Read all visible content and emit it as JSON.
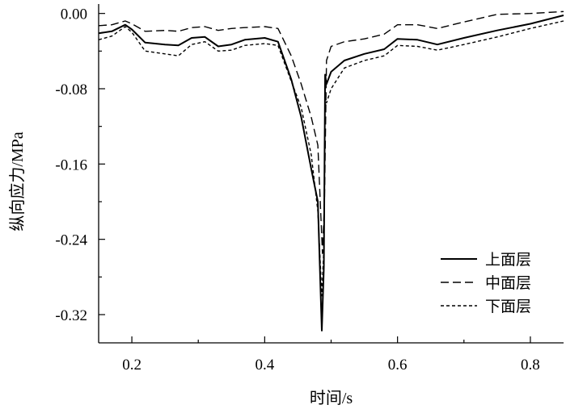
{
  "chart_data": {
    "type": "line",
    "title": "",
    "xlabel": "时间/s",
    "ylabel": "纵向应力/MPa",
    "xlim": [
      0.15,
      0.85
    ],
    "ylim": [
      -0.35,
      0.01
    ],
    "xticks": [
      0.2,
      0.4,
      0.6,
      0.8
    ],
    "xtick_labels": [
      "0.2",
      "0.4",
      "0.6",
      "0.8"
    ],
    "yticks": [
      0.0,
      -0.08,
      -0.16,
      -0.24,
      -0.32
    ],
    "ytick_labels": [
      "0.00",
      "-0.08",
      "-0.16",
      "-0.24",
      "-0.32"
    ],
    "grid": false,
    "legend_position": "bottom-right",
    "series": [
      {
        "name": "上面层",
        "style": "solid",
        "points": [
          [
            0.15,
            -0.021
          ],
          [
            0.17,
            -0.019
          ],
          [
            0.19,
            -0.012
          ],
          [
            0.2,
            -0.017
          ],
          [
            0.22,
            -0.031
          ],
          [
            0.25,
            -0.033
          ],
          [
            0.27,
            -0.034
          ],
          [
            0.29,
            -0.026
          ],
          [
            0.31,
            -0.025
          ],
          [
            0.33,
            -0.035
          ],
          [
            0.35,
            -0.033
          ],
          [
            0.37,
            -0.028
          ],
          [
            0.4,
            -0.026
          ],
          [
            0.42,
            -0.03
          ],
          [
            0.44,
            -0.07
          ],
          [
            0.455,
            -0.11
          ],
          [
            0.47,
            -0.165
          ],
          [
            0.48,
            -0.2
          ],
          [
            0.486,
            -0.337
          ],
          [
            0.489,
            -0.27
          ],
          [
            0.491,
            -0.065
          ],
          [
            0.493,
            -0.075
          ],
          [
            0.5,
            -0.062
          ],
          [
            0.52,
            -0.05
          ],
          [
            0.55,
            -0.043
          ],
          [
            0.58,
            -0.038
          ],
          [
            0.6,
            -0.027
          ],
          [
            0.63,
            -0.028
          ],
          [
            0.66,
            -0.033
          ],
          [
            0.7,
            -0.026
          ],
          [
            0.75,
            -0.018
          ],
          [
            0.8,
            -0.011
          ],
          [
            0.85,
            -0.002
          ]
        ]
      },
      {
        "name": "中面层",
        "style": "dashed",
        "points": [
          [
            0.15,
            -0.013
          ],
          [
            0.17,
            -0.012
          ],
          [
            0.19,
            -0.008
          ],
          [
            0.2,
            -0.011
          ],
          [
            0.22,
            -0.019
          ],
          [
            0.25,
            -0.018
          ],
          [
            0.27,
            -0.019
          ],
          [
            0.29,
            -0.015
          ],
          [
            0.31,
            -0.014
          ],
          [
            0.33,
            -0.018
          ],
          [
            0.35,
            -0.016
          ],
          [
            0.37,
            -0.015
          ],
          [
            0.4,
            -0.014
          ],
          [
            0.42,
            -0.016
          ],
          [
            0.44,
            -0.045
          ],
          [
            0.455,
            -0.075
          ],
          [
            0.47,
            -0.11
          ],
          [
            0.48,
            -0.14
          ],
          [
            0.487,
            -0.255
          ],
          [
            0.49,
            -0.2
          ],
          [
            0.493,
            -0.05
          ],
          [
            0.5,
            -0.035
          ],
          [
            0.52,
            -0.03
          ],
          [
            0.55,
            -0.027
          ],
          [
            0.58,
            -0.022
          ],
          [
            0.6,
            -0.012
          ],
          [
            0.63,
            -0.012
          ],
          [
            0.66,
            -0.016
          ],
          [
            0.7,
            -0.009
          ],
          [
            0.75,
            -0.001
          ],
          [
            0.8,
            0.0
          ],
          [
            0.85,
            0.002
          ]
        ]
      },
      {
        "name": "下面层",
        "style": "short-dashed",
        "points": [
          [
            0.15,
            -0.028
          ],
          [
            0.17,
            -0.024
          ],
          [
            0.19,
            -0.014
          ],
          [
            0.2,
            -0.02
          ],
          [
            0.22,
            -0.04
          ],
          [
            0.25,
            -0.043
          ],
          [
            0.27,
            -0.045
          ],
          [
            0.29,
            -0.033
          ],
          [
            0.31,
            -0.03
          ],
          [
            0.33,
            -0.04
          ],
          [
            0.35,
            -0.039
          ],
          [
            0.37,
            -0.034
          ],
          [
            0.4,
            -0.032
          ],
          [
            0.42,
            -0.034
          ],
          [
            0.44,
            -0.072
          ],
          [
            0.455,
            -0.1
          ],
          [
            0.47,
            -0.15
          ],
          [
            0.48,
            -0.21
          ],
          [
            0.486,
            -0.3
          ],
          [
            0.489,
            -0.25
          ],
          [
            0.491,
            -0.09
          ],
          [
            0.493,
            -0.095
          ],
          [
            0.5,
            -0.08
          ],
          [
            0.52,
            -0.058
          ],
          [
            0.55,
            -0.05
          ],
          [
            0.58,
            -0.045
          ],
          [
            0.6,
            -0.034
          ],
          [
            0.63,
            -0.035
          ],
          [
            0.66,
            -0.039
          ],
          [
            0.7,
            -0.033
          ],
          [
            0.75,
            -0.025
          ],
          [
            0.8,
            -0.016
          ],
          [
            0.85,
            -0.008
          ]
        ]
      }
    ]
  }
}
